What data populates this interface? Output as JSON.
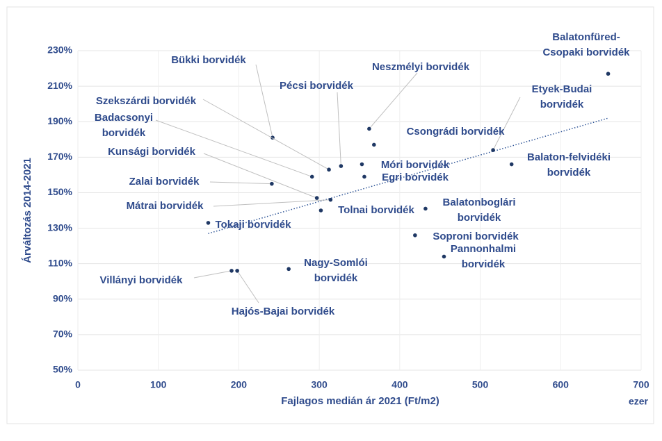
{
  "chart_data": {
    "type": "scatter",
    "xlabel": "Fajlagos medián ár 2021 (Ft/m2)",
    "x_unit": "ezer",
    "ylabel": "Árváltozás 2014-2021",
    "color": "#1f3864",
    "label_color": "#2f4b8c",
    "grid": true,
    "xlim": [
      0,
      700
    ],
    "xticks": [
      0,
      100,
      200,
      300,
      400,
      500,
      600,
      700
    ],
    "ylim": [
      50,
      230
    ],
    "yticks": [
      {
        "value": 50,
        "label": "50%"
      },
      {
        "value": 70,
        "label": "70%"
      },
      {
        "value": 90,
        "label": "90%"
      },
      {
        "value": 110,
        "label": "110%"
      },
      {
        "value": 130,
        "label": "130%"
      },
      {
        "value": 150,
        "label": "150%"
      },
      {
        "value": 170,
        "label": "170%"
      },
      {
        "value": 190,
        "label": "190%"
      },
      {
        "value": 210,
        "label": "210%"
      },
      {
        "value": 230,
        "label": "230%"
      }
    ],
    "x": [
      659,
      242,
      362,
      327,
      516,
      312,
      291,
      368,
      297,
      353,
      539,
      241,
      356,
      314,
      302,
      432,
      162,
      419,
      455,
      262,
      191,
      198
    ],
    "y": [
      217,
      181,
      186,
      165,
      174,
      163,
      159,
      177,
      147,
      166,
      166,
      155,
      159,
      146,
      140,
      141,
      133,
      126,
      114,
      107,
      106,
      106
    ],
    "labels": [
      [
        "Balatonfüred-",
        "Csopaki borvidék"
      ],
      [
        "Bükki borvidék"
      ],
      [
        "Neszmélyi borvidék"
      ],
      [
        "Pécsi borvidék"
      ],
      [
        "Etyek-Budai",
        "borvidék"
      ],
      [
        "Szekszárdi borvidék"
      ],
      [
        "Badacsonyi",
        "borvidék"
      ],
      [
        "Csongrádi borvidék"
      ],
      [
        "Kunsági borvidék"
      ],
      [
        "Móri borvidék"
      ],
      [
        "Balaton-felvidéki",
        "borvidék"
      ],
      [
        "Zalai borvidék"
      ],
      [
        "Egri borvidék"
      ],
      [
        "Mátrai borvidék"
      ],
      [
        "Tolnai borvidék"
      ],
      [
        "Balatonboglári",
        "borvidék"
      ],
      [
        "Tokaji borvidék"
      ],
      [
        "Soproni borvidék"
      ],
      [
        "Pannonhalmi",
        "borvidék"
      ],
      [
        "Nagy-Somlói",
        "borvidék"
      ],
      [
        "Villányi borvidék"
      ],
      [
        "Hajós-Bajai borvidék"
      ]
    ],
    "trendline": {
      "x": [
        162,
        659
      ],
      "y": [
        127,
        192
      ]
    }
  }
}
